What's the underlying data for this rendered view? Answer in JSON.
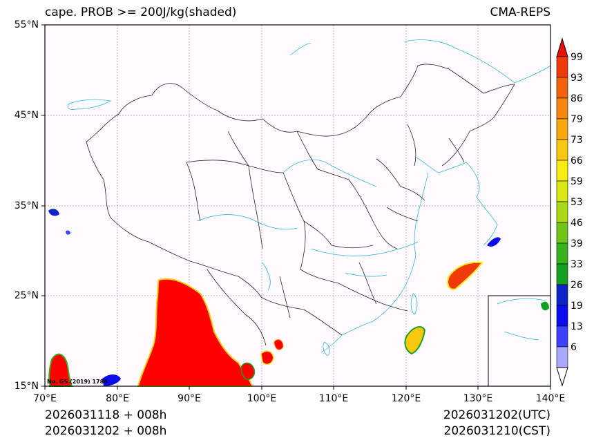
{
  "header": {
    "title": "cape. PROB >= 200J/kg(shaded)",
    "model": "CMA-REPS"
  },
  "axes": {
    "lat_labels": [
      "55°N",
      "45°N",
      "35°N",
      "25°N",
      "15°N"
    ],
    "lon_labels": [
      "70°E",
      "80°E",
      "90°E",
      "100°E",
      "110°E",
      "120°E",
      "130°E",
      "140°E"
    ]
  },
  "footer": {
    "init_utc": "2026031118  +  008h",
    "init_cst": "2026031202  +  008h",
    "valid_utc": "2026031202(UTC)",
    "valid_cst": "2026031210(CST)"
  },
  "map_note": "No. GS (2019) 1786",
  "colorbar": {
    "labels": [
      "99",
      "93",
      "86",
      "79",
      "73",
      "66",
      "59",
      "53",
      "46",
      "39",
      "33",
      "26",
      "19",
      "13",
      "6"
    ],
    "colors": [
      "#e8100c",
      "#f03a0c",
      "#f2620d",
      "#f5870e",
      "#f7a80f",
      "#f8c810",
      "#f8ec12",
      "#d8e812",
      "#aad816",
      "#72c418",
      "#38b21c",
      "#14a020",
      "#0c24c8",
      "#0c0cf0",
      "#4040ff",
      "#a8a8ff"
    ]
  },
  "colors": {
    "background": "#fffbff",
    "river": "#34b4e0",
    "border": "#222222",
    "grid": "#9a9a9a",
    "shade_high": "#ff0000"
  }
}
